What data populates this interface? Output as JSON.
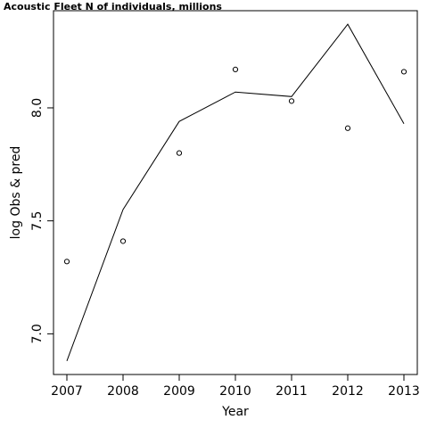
{
  "chart_data": {
    "type": "line",
    "title": "Acoustic Fleet   N of individuals, millions",
    "xlabel": "Year",
    "ylabel": "log Obs & pred",
    "x": [
      2007,
      2008,
      2009,
      2010,
      2011,
      2012,
      2013
    ],
    "xlim": [
      2007,
      2013
    ],
    "ylim": [
      6.82,
      8.43
    ],
    "xticks": [
      2007,
      2008,
      2009,
      2010,
      2011,
      2012,
      2013
    ],
    "yticks": [
      7.0,
      7.5,
      8.0
    ],
    "ytick_labels": [
      "7.0",
      "7.5",
      "8.0"
    ],
    "grid": false,
    "series": [
      {
        "role": "observed",
        "style": "points",
        "values": [
          7.32,
          7.41,
          7.8,
          8.17,
          8.03,
          7.91,
          8.16
        ]
      },
      {
        "role": "predicted",
        "style": "line",
        "values": [
          6.88,
          7.55,
          7.94,
          8.07,
          8.05,
          8.37,
          7.93
        ]
      }
    ],
    "colors": {
      "line": "#000000",
      "points": "#000000",
      "frame": "#000000"
    }
  }
}
